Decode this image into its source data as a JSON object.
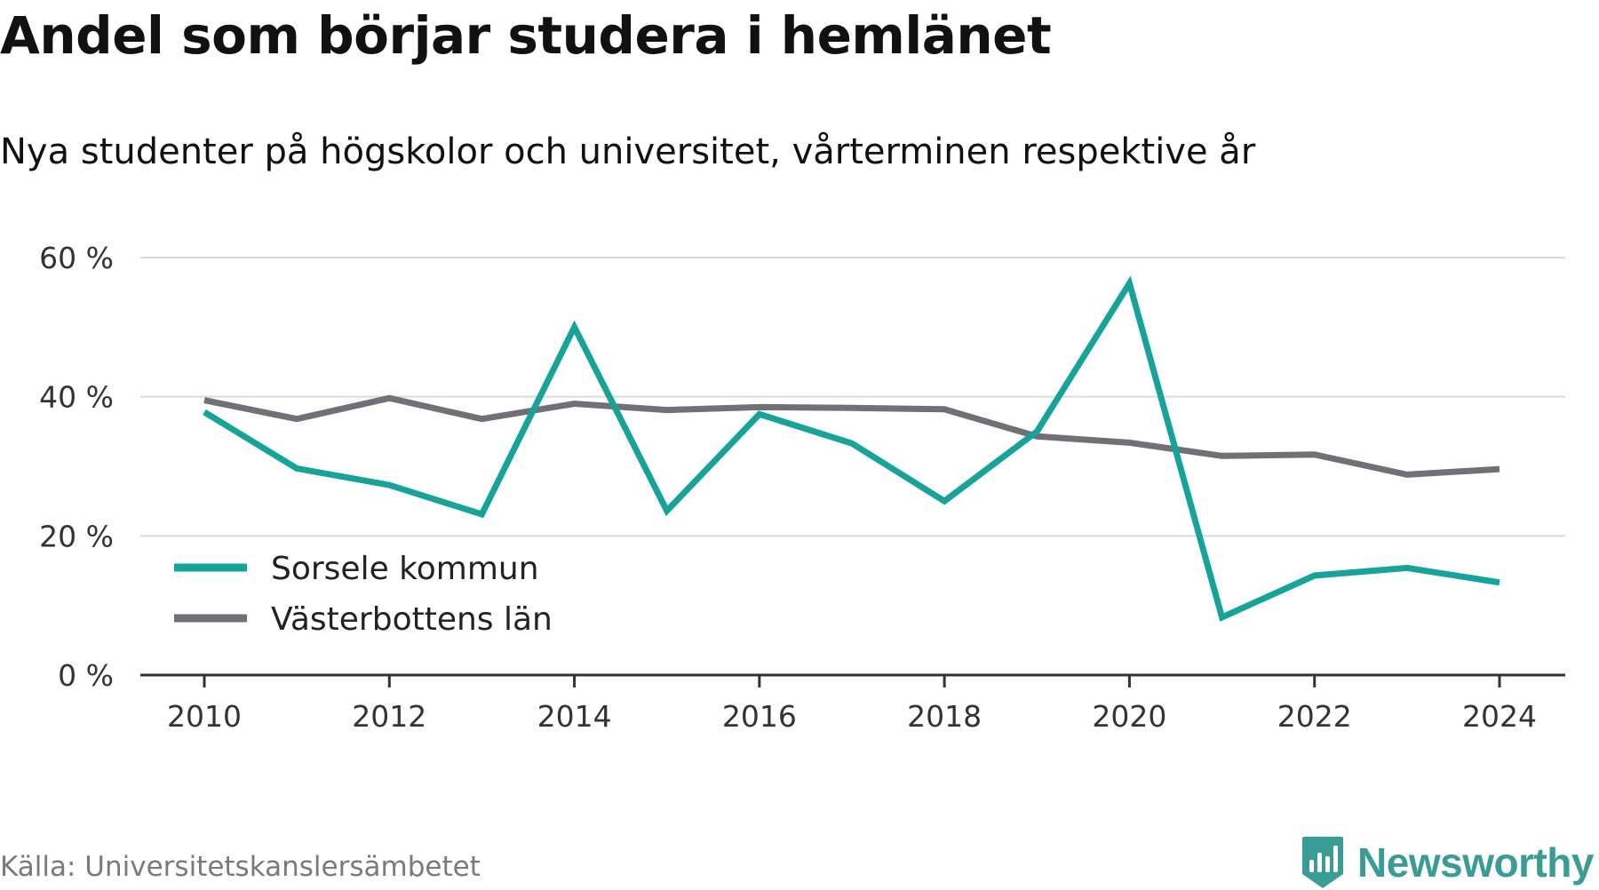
{
  "header": {
    "title": "Andel som börjar studera i hemlänet",
    "subtitle": "Nya studenter på högskolor och universitet, vårterminen respektive år"
  },
  "footer": {
    "source": "Källa: Universitetskanslersämbetet",
    "brand": "Newsworthy",
    "brand_icon": "bar-chart-shield-icon",
    "brand_color": "#3a9d95"
  },
  "chart_data": {
    "type": "line",
    "x": [
      2010,
      2011,
      2012,
      2013,
      2014,
      2015,
      2016,
      2017,
      2018,
      2019,
      2020,
      2021,
      2022,
      2023,
      2024
    ],
    "x_ticks": [
      2010,
      2012,
      2014,
      2016,
      2018,
      2020,
      2022,
      2024
    ],
    "y_ticks": [
      0,
      20,
      40,
      60
    ],
    "y_tick_labels": [
      "0 %",
      "20 %",
      "40 %",
      "60 %"
    ],
    "ylim": [
      0,
      60
    ],
    "xlabel": "",
    "ylabel": "",
    "grid": true,
    "legend_position": "bottom-left",
    "series": [
      {
        "name": "Sorsele kommun",
        "color": "#16a39a",
        "values": [
          37.8,
          29.7,
          27.3,
          23.1,
          50.0,
          23.6,
          37.5,
          33.3,
          25.0,
          35.0,
          56.3,
          8.3,
          14.3,
          15.4,
          13.3
        ]
      },
      {
        "name": "Västerbottens län",
        "color": "#727076",
        "values": [
          39.5,
          36.8,
          39.8,
          36.8,
          39.0,
          38.1,
          38.5,
          38.4,
          38.2,
          34.3,
          33.4,
          31.5,
          31.7,
          28.8,
          29.6
        ]
      }
    ]
  }
}
